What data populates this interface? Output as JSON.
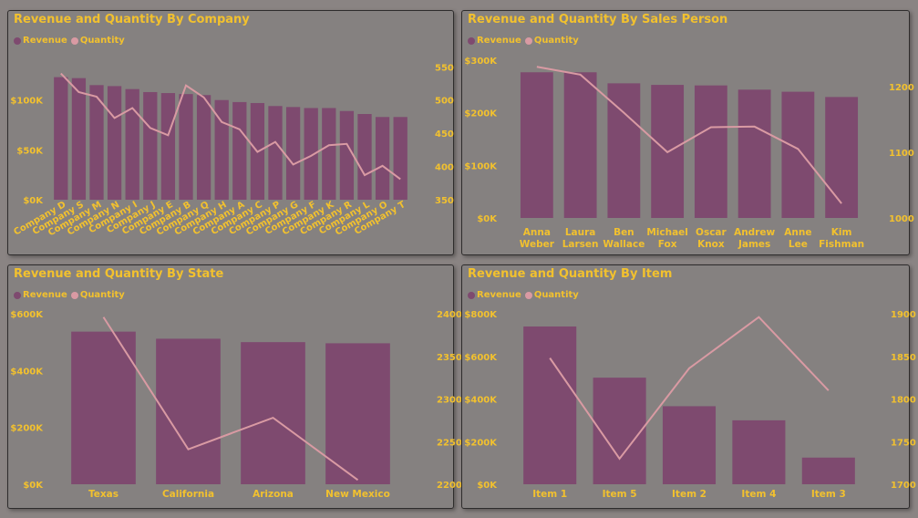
{
  "colors": {
    "revenue": "#7e4a6f",
    "quantity": "#d99aa3",
    "text": "#f2c12e"
  },
  "chart_data": [
    {
      "type": "bar",
      "title": "Revenue and Quantity By Company",
      "legend": [
        "Revenue",
        "Quantity"
      ],
      "legend_position": "top-left",
      "categories": [
        "Company D",
        "Company S",
        "Company M",
        "Company N",
        "Company I",
        "Company J",
        "Company E",
        "Company B",
        "Company Q",
        "Company H",
        "Company A",
        "Company C",
        "Company P",
        "Company G",
        "Company F",
        "Company K",
        "Company R",
        "Company L",
        "Company O",
        "Company T"
      ],
      "series": [
        {
          "name": "Revenue",
          "axis": "left",
          "values": [
            123000,
            122000,
            115000,
            114000,
            111000,
            108000,
            107000,
            106000,
            105000,
            100000,
            98000,
            97000,
            94000,
            93000,
            92000,
            92000,
            89000,
            86000,
            83000,
            83000
          ]
        },
        {
          "name": "Quantity",
          "axis": "right",
          "type": "line",
          "values": [
            540,
            512,
            505,
            473,
            488,
            458,
            447,
            522,
            504,
            467,
            456,
            422,
            437,
            403,
            416,
            432,
            434,
            387,
            401,
            381
          ]
        }
      ],
      "y_left": {
        "range": [
          0,
          140000
        ],
        "ticks": [
          0,
          50000,
          100000
        ],
        "tick_labels": [
          "$0K",
          "$50K",
          "$100K"
        ]
      },
      "y_right": {
        "range": [
          350,
          560
        ],
        "ticks": [
          350,
          400,
          450,
          500,
          550
        ],
        "tick_labels": [
          "350",
          "400",
          "450",
          "500",
          "550"
        ]
      },
      "x_label_rotation": -30
    },
    {
      "type": "bar",
      "title": "Revenue and Quantity By Sales Person",
      "legend": [
        "Revenue",
        "Quantity"
      ],
      "legend_position": "top-left",
      "categories": [
        "Anna Weber",
        "Laura Larsen",
        "Ben Wallace",
        "Michael Fox",
        "Oscar Knox",
        "Andrew James",
        "Anne Lee",
        "Kim Fishman"
      ],
      "series": [
        {
          "name": "Revenue",
          "axis": "left",
          "values": [
            277000,
            277000,
            256000,
            253000,
            252000,
            244000,
            240000,
            230000
          ]
        },
        {
          "name": "Quantity",
          "axis": "right",
          "type": "line",
          "values": [
            1230,
            1218,
            1160,
            1100,
            1138,
            1139,
            1105,
            1022
          ]
        }
      ],
      "y_left": {
        "range": [
          0,
          300000
        ],
        "ticks": [
          0,
          100000,
          200000,
          300000
        ],
        "tick_labels": [
          "$0K",
          "$100K",
          "$200K",
          "$300K"
        ]
      },
      "y_right": {
        "range": [
          1000,
          1240
        ],
        "ticks": [
          1000,
          1100,
          1200
        ],
        "tick_labels": [
          "1000",
          "1100",
          "1200"
        ]
      },
      "x_label_rotation": 0
    },
    {
      "type": "bar",
      "title": "Revenue and Quantity By State",
      "legend": [
        "Revenue",
        "Quantity"
      ],
      "legend_position": "top-left",
      "categories": [
        "Texas",
        "California",
        "Arizona",
        "New Mexico"
      ],
      "series": [
        {
          "name": "Revenue",
          "axis": "left",
          "values": [
            537000,
            512000,
            500000,
            496000
          ]
        },
        {
          "name": "Quantity",
          "axis": "right",
          "type": "line",
          "values": [
            2396,
            2241,
            2278,
            2205
          ]
        }
      ],
      "y_left": {
        "range": [
          0,
          600000
        ],
        "ticks": [
          0,
          200000,
          400000,
          600000
        ],
        "tick_labels": [
          "$0K",
          "$200K",
          "$400K",
          "$600K"
        ]
      },
      "y_right": {
        "range": [
          2200,
          2400
        ],
        "ticks": [
          2200,
          2250,
          2300,
          2350,
          2400
        ],
        "tick_labels": [
          "2200",
          "2250",
          "2300",
          "2350",
          "2400"
        ]
      },
      "x_label_rotation": 0
    },
    {
      "type": "bar",
      "title": "Revenue and Quantity By Item",
      "legend": [
        "Revenue",
        "Quantity"
      ],
      "legend_position": "top-left",
      "categories": [
        "Item 1",
        "Item 5",
        "Item 2",
        "Item 4",
        "Item 3"
      ],
      "series": [
        {
          "name": "Revenue",
          "axis": "left",
          "values": [
            740000,
            500000,
            366000,
            300000,
            125000
          ]
        },
        {
          "name": "Quantity",
          "axis": "right",
          "type": "line",
          "values": [
            1848,
            1730,
            1836,
            1896,
            1810
          ]
        }
      ],
      "y_left": {
        "range": [
          0,
          800000
        ],
        "ticks": [
          0,
          200000,
          400000,
          600000,
          800000
        ],
        "tick_labels": [
          "$0K",
          "$200K",
          "$400K",
          "$600K",
          "$800K"
        ]
      },
      "y_right": {
        "range": [
          1700,
          1900
        ],
        "ticks": [
          1700,
          1750,
          1800,
          1850,
          1900
        ],
        "tick_labels": [
          "1700",
          "1750",
          "1800",
          "1850",
          "1900"
        ]
      },
      "x_label_rotation": 0
    }
  ]
}
